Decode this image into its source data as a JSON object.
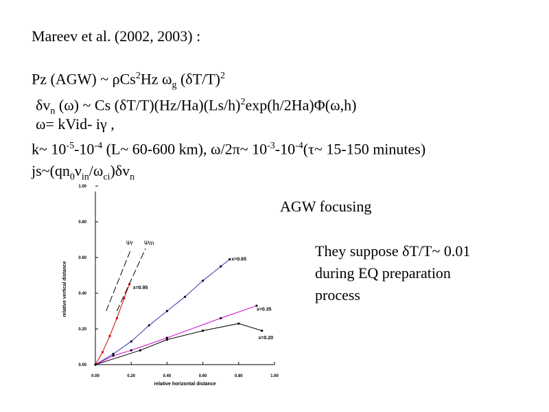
{
  "slide": {
    "title": "Mareev et al. (2002, 2003) :",
    "eq1": {
      "a": "Pz (AGW) ~ ρCs",
      "sup1": "2",
      "b": "Hz ω",
      "sub1": "g",
      "c": " (δT/T)",
      "sup2": "2"
    },
    "eq2": {
      "a": "δv",
      "sub1": "n",
      "b": " (ω) ~ Cs (δT/T)(Hz/Ha)(Ls/h)",
      "sup1": "2",
      "c": "exp(h/2Ha)Φ(ω,h)"
    },
    "eq3": {
      "a": "ω= kVid- iγ ,"
    },
    "eq4": {
      "a": "k~ 10",
      "sup1": "-5",
      "b": "-10",
      "sup2": "-4",
      "c": " (L~ 60-600 km), ω/2π~ 10",
      "sup3": "-3",
      "d": "-10",
      "sup4": "-4",
      "e": "(τ~ 15-150 minutes)"
    },
    "eq5": {
      "a": "js~(qn",
      "sub1": "0",
      "b": "ν",
      "sub2": "in",
      "c": "/ω",
      "sub3": "ci",
      "d": ")δv",
      "sub4": "n"
    },
    "agw_label": "AGW focusing",
    "note": [
      "They suppose δT/T~ 0.01",
      "during EQ preparation",
      "process"
    ]
  },
  "chart_data": {
    "type": "line",
    "xlabel": "relative horizontal distance",
    "ylabel": "relative vertical distance",
    "xlim": [
      0,
      1
    ],
    "ylim": [
      0,
      1
    ],
    "x_ticks": [
      "0.00",
      "0.20",
      "0.40",
      "0.60",
      "0.80",
      "1.00"
    ],
    "y_ticks": [
      "0.00",
      "0.20",
      "0.40",
      "0.60",
      "0.80",
      "1.00"
    ],
    "annotations": [
      {
        "text": "Ψr",
        "x": 0.17,
        "y": 0.67
      },
      {
        "text": "Ψm",
        "x": 0.27,
        "y": 0.67
      }
    ],
    "series": [
      {
        "label": "x=0.95",
        "color": "#cc0000",
        "line_color": "#cc0000",
        "label_at": [
          0.21,
          0.43
        ],
        "x": [
          0.0,
          0.04,
          0.08,
          0.12,
          0.16,
          0.19
        ],
        "y": [
          0.0,
          0.07,
          0.16,
          0.26,
          0.37,
          0.45
        ]
      },
      {
        "label": "x=0.65",
        "color": "#000000",
        "line_color": "#3333aa",
        "label_at": [
          0.76,
          0.59
        ],
        "x": [
          0.0,
          0.1,
          0.2,
          0.3,
          0.4,
          0.5,
          0.6,
          0.7,
          0.75
        ],
        "y": [
          0.0,
          0.06,
          0.13,
          0.22,
          0.3,
          0.38,
          0.47,
          0.55,
          0.59
        ]
      },
      {
        "label": "x=0.35",
        "color": "#000000",
        "line_color": "#cc00cc",
        "label_at": [
          0.9,
          0.31
        ],
        "x": [
          0.0,
          0.1,
          0.2,
          0.4,
          0.7,
          0.9
        ],
        "y": [
          0.0,
          0.05,
          0.08,
          0.15,
          0.26,
          0.33
        ]
      },
      {
        "label": "x=0.20",
        "color": "#000000",
        "line_color": "#000000",
        "label_at": [
          0.91,
          0.15
        ],
        "x": [
          0.0,
          0.25,
          0.4,
          0.6,
          0.8,
          0.93
        ],
        "y": [
          0.0,
          0.08,
          0.14,
          0.19,
          0.23,
          0.19
        ]
      }
    ]
  }
}
